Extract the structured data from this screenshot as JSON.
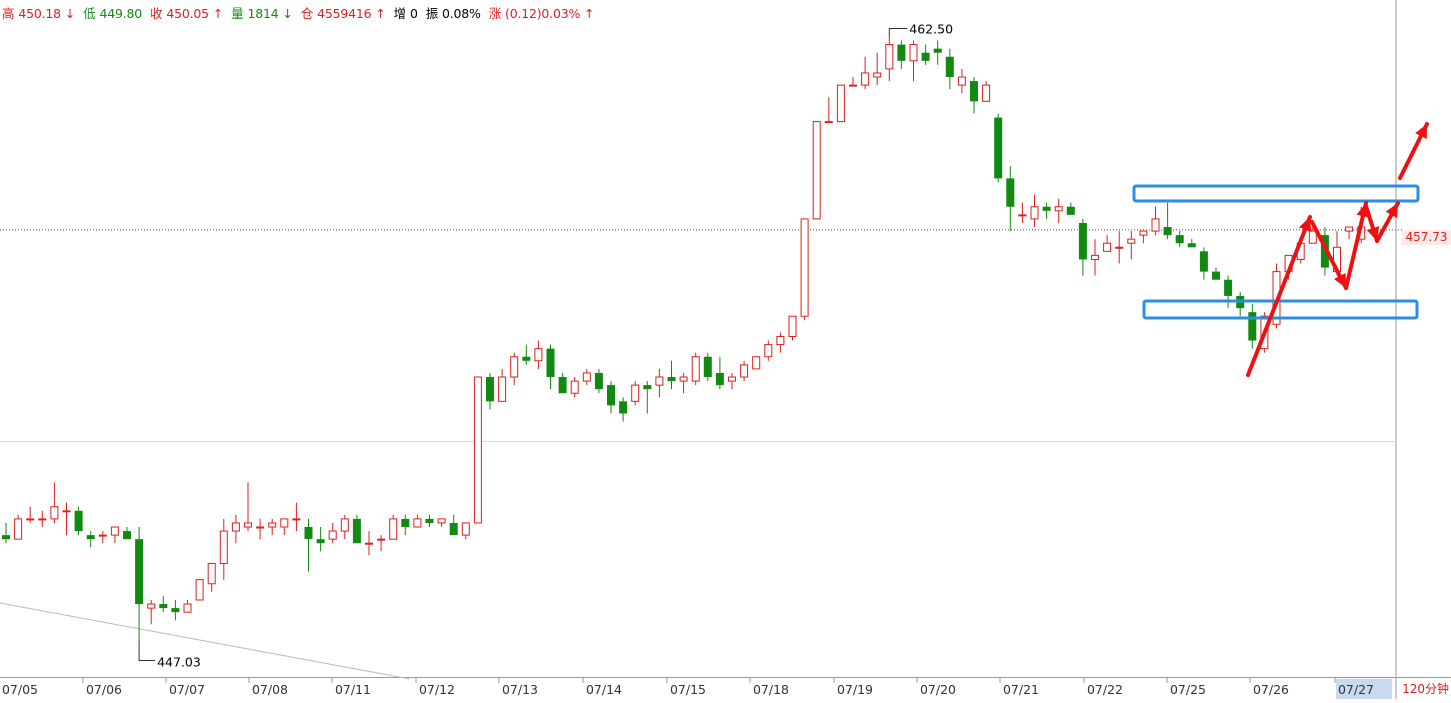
{
  "header": {
    "high_label": "高",
    "high": "450.18",
    "high_arrow": "↓",
    "low_label": "低",
    "low": "449.80",
    "close_label": "收",
    "close": "450.05",
    "close_arrow": "↑",
    "volume_label": "量",
    "volume": "1814",
    "volume_arrow": "↓",
    "oi_label": "仓",
    "oi": "4559416",
    "oi_arrow": "↑",
    "inc_label": "增",
    "inc": "0",
    "amp_label": "振",
    "amp": "0.08%",
    "chg_label": "涨",
    "chg": "(0.12)0.03%",
    "chg_arrow": "↑"
  },
  "period_label": "120分钟",
  "current_price": "457.73",
  "annotations": {
    "high": "462.50",
    "low": "447.03"
  },
  "colors": {
    "up": "#dd1f1f",
    "down": "#128a12",
    "box": "#2b8fde",
    "arrow": "#ee1111",
    "grid": "#d8d8d8"
  },
  "chart_data": {
    "type": "candlestick",
    "x_labels": [
      "07/05",
      "07/06",
      "07/07",
      "07/08",
      "07/11",
      "07/12",
      "07/13",
      "07/14",
      "07/15",
      "07/18",
      "07/19",
      "07/20",
      "07/21",
      "07/22",
      "07/25",
      "07/26",
      "07/27"
    ],
    "highlighted_x_label": "07/27",
    "y_range": [
      446.7,
      463.4
    ],
    "reference_price": 457.73,
    "max_annotation": 462.5,
    "min_annotation": 447.03,
    "candles": [
      [
        450.2,
        450.5,
        450.0,
        450.1
      ],
      [
        450.1,
        450.7,
        450.1,
        450.6
      ],
      [
        450.6,
        450.9,
        450.5,
        450.6
      ],
      [
        450.6,
        450.8,
        450.4,
        450.6
      ],
      [
        450.6,
        451.5,
        450.5,
        450.9
      ],
      [
        450.8,
        451.0,
        450.2,
        450.8
      ],
      [
        450.8,
        450.9,
        450.2,
        450.3
      ],
      [
        450.2,
        450.3,
        449.9,
        450.1
      ],
      [
        450.2,
        450.3,
        450.0,
        450.2
      ],
      [
        450.2,
        450.4,
        450.0,
        450.4
      ],
      [
        450.3,
        450.4,
        450.1,
        450.1
      ],
      [
        450.1,
        450.4,
        447.6,
        448.5
      ],
      [
        448.4,
        448.6,
        448.0,
        448.5
      ],
      [
        448.5,
        448.7,
        448.3,
        448.4
      ],
      [
        448.4,
        448.6,
        448.1,
        448.3
      ],
      [
        448.3,
        448.6,
        448.3,
        448.5
      ],
      [
        448.6,
        449.1,
        448.6,
        449.1
      ],
      [
        449.0,
        449.4,
        448.8,
        449.5
      ],
      [
        449.5,
        450.6,
        449.1,
        450.3
      ],
      [
        450.3,
        450.7,
        450.0,
        450.5
      ],
      [
        450.4,
        451.5,
        450.3,
        450.5
      ],
      [
        450.4,
        450.6,
        450.1,
        450.4
      ],
      [
        450.4,
        450.6,
        450.2,
        450.5
      ],
      [
        450.4,
        450.6,
        450.2,
        450.6
      ],
      [
        450.6,
        451.0,
        450.3,
        450.6
      ],
      [
        450.4,
        450.6,
        449.3,
        450.1
      ],
      [
        450.1,
        450.4,
        449.8,
        450.0
      ],
      [
        450.1,
        450.5,
        450.0,
        450.3
      ],
      [
        450.3,
        450.7,
        450.1,
        450.6
      ],
      [
        450.6,
        450.7,
        450.0,
        450.0
      ],
      [
        450.0,
        450.3,
        449.7,
        450.0
      ],
      [
        450.1,
        450.2,
        449.8,
        450.1
      ],
      [
        450.1,
        450.7,
        450.1,
        450.6
      ],
      [
        450.6,
        450.7,
        450.2,
        450.4
      ],
      [
        450.4,
        450.7,
        450.4,
        450.6
      ],
      [
        450.6,
        450.7,
        450.4,
        450.5
      ],
      [
        450.5,
        450.6,
        450.4,
        450.6
      ],
      [
        450.5,
        450.7,
        450.3,
        450.2
      ],
      [
        450.2,
        450.5,
        450.1,
        450.5
      ],
      [
        450.5,
        454.0,
        450.5,
        454.1
      ],
      [
        454.1,
        454.2,
        453.3,
        453.5
      ],
      [
        453.5,
        454.3,
        453.5,
        454.1
      ],
      [
        454.1,
        454.7,
        453.9,
        454.6
      ],
      [
        454.6,
        454.9,
        454.4,
        454.5
      ],
      [
        454.5,
        455.0,
        454.3,
        454.8
      ],
      [
        454.8,
        454.9,
        453.8,
        454.1
      ],
      [
        454.1,
        454.2,
        453.7,
        453.7
      ],
      [
        453.7,
        454.1,
        453.6,
        454.0
      ],
      [
        454.0,
        454.3,
        453.9,
        454.2
      ],
      [
        454.2,
        454.3,
        453.7,
        453.8
      ],
      [
        453.9,
        454.0,
        453.2,
        453.4
      ],
      [
        453.5,
        453.6,
        453.0,
        453.2
      ],
      [
        453.5,
        454.0,
        453.4,
        453.9
      ],
      [
        453.9,
        454.0,
        453.2,
        453.8
      ],
      [
        453.9,
        454.3,
        453.6,
        454.1
      ],
      [
        454.1,
        454.5,
        453.8,
        454.0
      ],
      [
        454.0,
        454.2,
        453.7,
        454.1
      ],
      [
        454.0,
        454.7,
        453.9,
        454.6
      ],
      [
        454.6,
        454.7,
        454.0,
        454.1
      ],
      [
        454.2,
        454.6,
        453.8,
        453.9
      ],
      [
        454.0,
        454.2,
        453.8,
        454.1
      ],
      [
        454.1,
        454.5,
        454.0,
        454.4
      ],
      [
        454.3,
        454.6,
        454.3,
        454.6
      ],
      [
        454.6,
        455.0,
        454.5,
        454.9
      ],
      [
        454.9,
        455.2,
        454.7,
        455.1
      ],
      [
        455.1,
        455.6,
        455.0,
        455.6
      ],
      [
        455.6,
        458.0,
        455.5,
        458.0
      ],
      [
        458.0,
        460.4,
        458.0,
        460.4
      ],
      [
        460.4,
        461.0,
        460.4,
        460.4
      ],
      [
        460.4,
        461.3,
        460.4,
        461.3
      ],
      [
        461.3,
        461.5,
        461.3,
        461.3
      ],
      [
        461.3,
        462.0,
        461.2,
        461.6
      ],
      [
        461.5,
        462.1,
        461.3,
        461.6
      ],
      [
        461.7,
        462.5,
        461.4,
        462.3
      ],
      [
        462.3,
        462.4,
        461.7,
        461.9
      ],
      [
        461.9,
        462.4,
        461.4,
        462.3
      ],
      [
        462.1,
        462.3,
        461.8,
        461.9
      ],
      [
        462.2,
        462.4,
        461.8,
        462.1
      ],
      [
        462.0,
        462.2,
        461.2,
        461.5
      ],
      [
        461.3,
        461.7,
        461.1,
        461.5
      ],
      [
        461.4,
        461.5,
        460.6,
        460.9
      ],
      [
        460.9,
        461.4,
        460.9,
        461.3
      ],
      [
        460.5,
        460.6,
        458.9,
        459.0
      ],
      [
        459.0,
        459.3,
        457.7,
        458.3
      ],
      [
        458.1,
        458.4,
        457.9,
        458.1
      ],
      [
        458.0,
        458.6,
        457.8,
        458.3
      ],
      [
        458.3,
        458.4,
        458.0,
        458.2
      ],
      [
        458.2,
        458.5,
        457.9,
        458.3
      ],
      [
        458.3,
        458.4,
        458.2,
        458.1
      ],
      [
        457.9,
        458.0,
        456.6,
        457.0
      ],
      [
        457.0,
        457.5,
        456.6,
        457.1
      ],
      [
        457.2,
        457.6,
        457.2,
        457.4
      ],
      [
        457.3,
        457.7,
        456.9,
        457.3
      ],
      [
        457.4,
        457.7,
        457.0,
        457.5
      ],
      [
        457.6,
        457.7,
        457.4,
        457.7
      ],
      [
        457.7,
        458.3,
        457.6,
        458.0
      ],
      [
        457.8,
        458.4,
        457.5,
        457.6
      ],
      [
        457.6,
        457.7,
        457.3,
        457.4
      ],
      [
        457.4,
        457.5,
        457.3,
        457.3
      ],
      [
        457.2,
        457.3,
        456.5,
        456.7
      ],
      [
        456.7,
        456.8,
        456.6,
        456.5
      ],
      [
        456.5,
        456.6,
        455.8,
        456.1
      ],
      [
        456.1,
        456.2,
        455.6,
        455.8
      ],
      [
        455.7,
        455.9,
        454.8,
        455.0
      ],
      [
        454.8,
        455.7,
        454.7,
        455.6
      ],
      [
        455.4,
        456.9,
        455.3,
        456.7
      ],
      [
        456.7,
        457.1,
        456.5,
        457.1
      ],
      [
        457.0,
        457.5,
        456.9,
        457.4
      ],
      [
        457.4,
        457.8,
        457.4,
        457.7
      ],
      [
        457.6,
        457.8,
        456.6,
        456.8
      ],
      [
        456.7,
        457.7,
        456.6,
        457.3
      ],
      [
        457.7,
        457.8,
        457.5,
        457.8
      ],
      [
        457.5,
        458.3,
        457.4,
        457.8
      ]
    ]
  }
}
